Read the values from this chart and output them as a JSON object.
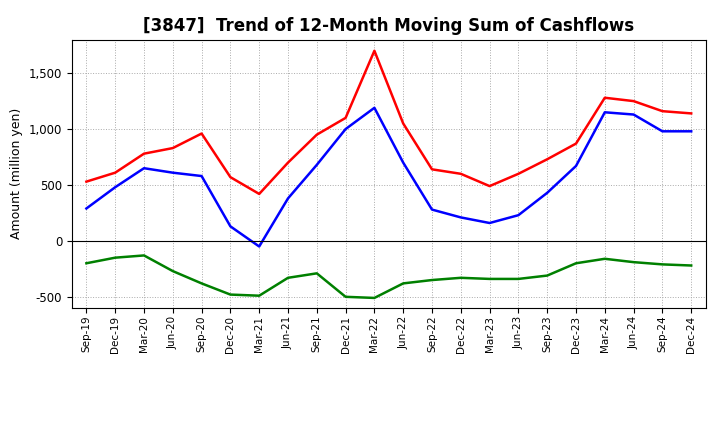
{
  "title": "[3847]  Trend of 12-Month Moving Sum of Cashflows",
  "ylabel": "Amount (million yen)",
  "x_labels": [
    "Sep-19",
    "Dec-19",
    "Mar-20",
    "Jun-20",
    "Sep-20",
    "Dec-20",
    "Mar-21",
    "Jun-21",
    "Sep-21",
    "Dec-21",
    "Mar-22",
    "Jun-22",
    "Sep-22",
    "Dec-22",
    "Mar-23",
    "Jun-23",
    "Sep-23",
    "Dec-23",
    "Mar-24",
    "Jun-24",
    "Sep-24",
    "Dec-24"
  ],
  "operating": [
    530,
    610,
    780,
    830,
    960,
    570,
    420,
    700,
    950,
    1100,
    1700,
    1050,
    640,
    600,
    490,
    600,
    730,
    870,
    1280,
    1250,
    1160,
    1140
  ],
  "investing": [
    -200,
    -150,
    -130,
    -270,
    -380,
    -480,
    -490,
    -330,
    -290,
    -500,
    -510,
    -380,
    -350,
    -330,
    -340,
    -340,
    -310,
    -200,
    -160,
    -190,
    -210,
    -220
  ],
  "free": [
    290,
    480,
    650,
    610,
    580,
    130,
    -50,
    380,
    680,
    1000,
    1190,
    700,
    280,
    210,
    160,
    230,
    430,
    670,
    1150,
    1130,
    980,
    980
  ],
  "operating_color": "#FF0000",
  "investing_color": "#008000",
  "free_color": "#0000FF",
  "ylim": [
    -600,
    1800
  ],
  "yticks": [
    -500,
    0,
    500,
    1000,
    1500
  ],
  "grid_color": "#aaaaaa",
  "bg_color": "#ffffff",
  "title_fontsize": 12,
  "axis_fontsize": 9,
  "legend_fontsize": 9,
  "linewidth": 1.8
}
